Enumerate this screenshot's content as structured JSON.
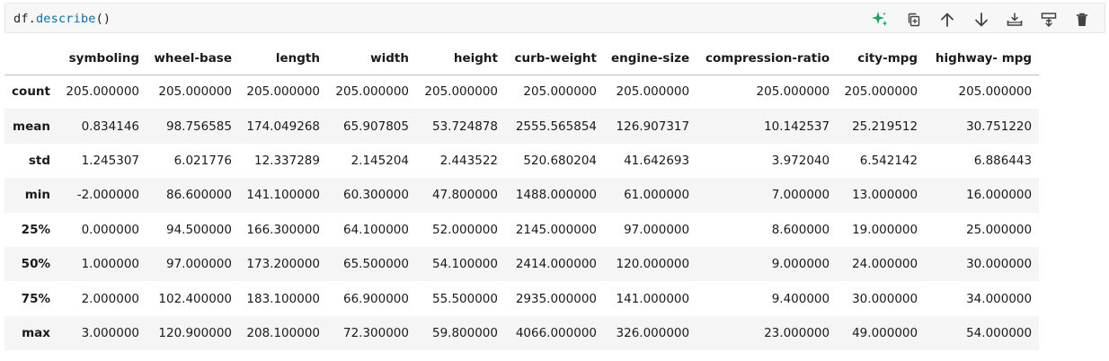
{
  "cell": {
    "code": {
      "identifier": "df",
      "dot": ".",
      "method": "describe",
      "parens": "()"
    },
    "toolbar": {
      "items": [
        {
          "name": "generate",
          "icon": "sparkle-icon",
          "color": "#1aa260"
        },
        {
          "name": "copy",
          "icon": "copy-icon"
        },
        {
          "name": "move-up",
          "icon": "arrow-up-icon"
        },
        {
          "name": "move-down",
          "icon": "arrow-down-icon"
        },
        {
          "name": "insert-below",
          "icon": "insert-below-icon"
        },
        {
          "name": "split",
          "icon": "split-cell-icon"
        },
        {
          "name": "delete",
          "icon": "trash-icon"
        }
      ]
    }
  },
  "output": {
    "columns": [
      "",
      "symboling",
      "wheel-base",
      "length",
      "width",
      "height",
      "curb-weight",
      "engine-size",
      "compression-ratio",
      "city-mpg",
      "highway- mpg"
    ],
    "rows": [
      {
        "index": "count",
        "values": [
          "205.000000",
          "205.000000",
          "205.000000",
          "205.000000",
          "205.000000",
          "205.000000",
          "205.000000",
          "205.000000",
          "205.000000",
          "205.000000"
        ]
      },
      {
        "index": "mean",
        "values": [
          "0.834146",
          "98.756585",
          "174.049268",
          "65.907805",
          "53.724878",
          "2555.565854",
          "126.907317",
          "10.142537",
          "25.219512",
          "30.751220"
        ]
      },
      {
        "index": "std",
        "values": [
          "1.245307",
          "6.021776",
          "12.337289",
          "2.145204",
          "2.443522",
          "520.680204",
          "41.642693",
          "3.972040",
          "6.542142",
          "6.886443"
        ]
      },
      {
        "index": "min",
        "values": [
          "-2.000000",
          "86.600000",
          "141.100000",
          "60.300000",
          "47.800000",
          "1488.000000",
          "61.000000",
          "7.000000",
          "13.000000",
          "16.000000"
        ]
      },
      {
        "index": "25%",
        "values": [
          "0.000000",
          "94.500000",
          "166.300000",
          "64.100000",
          "52.000000",
          "2145.000000",
          "97.000000",
          "8.600000",
          "19.000000",
          "25.000000"
        ]
      },
      {
        "index": "50%",
        "values": [
          "1.000000",
          "97.000000",
          "173.200000",
          "65.500000",
          "54.100000",
          "2414.000000",
          "120.000000",
          "9.000000",
          "24.000000",
          "30.000000"
        ]
      },
      {
        "index": "75%",
        "values": [
          "2.000000",
          "102.400000",
          "183.100000",
          "66.900000",
          "55.500000",
          "2935.000000",
          "141.000000",
          "9.400000",
          "30.000000",
          "34.000000"
        ]
      },
      {
        "index": "max",
        "values": [
          "3.000000",
          "120.900000",
          "208.100000",
          "72.300000",
          "59.800000",
          "4066.000000",
          "326.000000",
          "23.000000",
          "49.000000",
          "54.000000"
        ]
      }
    ]
  }
}
